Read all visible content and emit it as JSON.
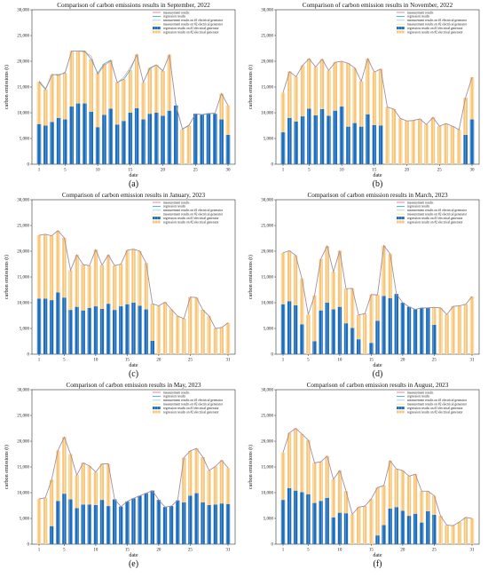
{
  "chart_data": [
    {
      "type": "bar",
      "caption": "(a)",
      "title": "Comparison of carbon emissions results in September, 2022",
      "xlabel": "date",
      "ylabel": "carbon emissions (t)",
      "ylim": [
        0,
        30000
      ],
      "yticks": [
        "0",
        "5,000",
        "10,000",
        "15,000",
        "20,000",
        "25,000",
        "30,000"
      ],
      "xtick_labels": [
        "1",
        "5",
        "10",
        "15",
        "20",
        "25",
        "30"
      ],
      "x": [
        1,
        2,
        3,
        4,
        5,
        6,
        7,
        8,
        9,
        10,
        11,
        12,
        13,
        14,
        15,
        16,
        17,
        18,
        19,
        20,
        21,
        22,
        23,
        24,
        25,
        26,
        27,
        28,
        29,
        30
      ],
      "legend": [
        "measurement results",
        "regression results",
        "measurement results on #1 electrical generator",
        "measurement results on #2 electrical generator",
        "regression results on #1 electrical generator",
        "regression results on #2 electrical generator"
      ],
      "legend_position": "top-right",
      "series": [
        {
          "name": "regression results on #1 electrical generator",
          "values": [
            7800,
            7500,
            8200,
            9000,
            8700,
            11200,
            11800,
            11800,
            10200,
            7200,
            9600,
            10800,
            7700,
            8400,
            10000,
            10900,
            8700,
            9800,
            10000,
            9400,
            10400,
            11400,
            0,
            0,
            9800,
            9600,
            9800,
            9800,
            8700,
            5700
          ]
        },
        {
          "name": "regression results on #2 electrical generator",
          "values": [
            8200,
            7000,
            9200,
            8400,
            9000,
            10800,
            10200,
            10200,
            10200,
            10500,
            9900,
            9400,
            8200,
            8100,
            8300,
            10400,
            7200,
            8900,
            9300,
            8700,
            10900,
            0,
            6800,
            7500,
            0,
            0,
            0,
            100,
            5000,
            5700
          ]
        },
        {
          "name": "measurement results",
          "values": [
            16200,
            14700,
            17500,
            17200,
            17900,
            22000,
            22000,
            21800,
            21000,
            17400,
            19200,
            20000,
            15800,
            16900,
            18800,
            21200,
            16000,
            18500,
            19300,
            18200,
            21200,
            11800,
            6900,
            7600,
            9800,
            9700,
            9900,
            9900,
            13800,
            11400
          ]
        }
      ]
    },
    {
      "type": "bar",
      "caption": "(b)",
      "title": "Comparison of carbon emission results in November, 2022",
      "xlabel": "date",
      "ylabel": "carbon emissions (t)",
      "ylim": [
        0,
        30000
      ],
      "yticks": [
        "0",
        "5,000",
        "10,000",
        "15,000",
        "20,000",
        "25,000",
        "30,000"
      ],
      "xtick_labels": [
        "1",
        "5",
        "10",
        "15",
        "20",
        "25",
        "30"
      ],
      "x": [
        1,
        2,
        3,
        4,
        5,
        6,
        7,
        8,
        9,
        10,
        11,
        12,
        13,
        14,
        15,
        16,
        17,
        18,
        19,
        20,
        21,
        22,
        23,
        24,
        25,
        26,
        27,
        28,
        29,
        30
      ],
      "legend": [
        "measurement results",
        "regression results",
        "measurement results on #1 electrical generator",
        "measurement results on #2 electrical generator",
        "regression results on #1 electrical generator",
        "regression results on #2 electrical generator"
      ],
      "legend_position": "top-right",
      "series": [
        {
          "name": "regression results on #1 electrical generator",
          "values": [
            6200,
            9000,
            8300,
            9300,
            10800,
            9500,
            10700,
            9400,
            10400,
            11200,
            7300,
            8000,
            7300,
            9700,
            7600,
            7500,
            0,
            0,
            0,
            0,
            0,
            0,
            0,
            0,
            0,
            0,
            0,
            0,
            5700,
            8700
          ]
        },
        {
          "name": "regression results on #2 electrical generator",
          "values": [
            7700,
            9000,
            8700,
            9900,
            9700,
            9400,
            9700,
            8800,
            9400,
            8800,
            12300,
            10700,
            8800,
            10800,
            10300,
            11000,
            11100,
            10700,
            8900,
            8400,
            8500,
            8800,
            7700,
            9100,
            7400,
            7900,
            7400,
            6700,
            7200,
            8200
          ]
        },
        {
          "name": "measurement results",
          "values": [
            13900,
            18000,
            17000,
            19200,
            20500,
            18900,
            20400,
            18200,
            19800,
            20000,
            19600,
            18700,
            16100,
            20500,
            17900,
            18500,
            11100,
            10700,
            8900,
            8400,
            8500,
            8800,
            7700,
            9100,
            7400,
            7900,
            7400,
            6700,
            12900,
            16900
          ]
        }
      ]
    },
    {
      "type": "bar",
      "caption": "(c)",
      "title": "Comparison of carbon emission results in January, 2023",
      "xlabel": "date",
      "ylabel": "carbon emissions (t)",
      "ylim": [
        0,
        30000
      ],
      "yticks": [
        "0",
        "5,000",
        "10,000",
        "15,000",
        "20,000",
        "25,000",
        "30,000"
      ],
      "xtick_labels": [
        "1",
        "5",
        "10",
        "15",
        "20",
        "25",
        "31"
      ],
      "x": [
        1,
        2,
        3,
        4,
        5,
        6,
        7,
        8,
        9,
        10,
        11,
        12,
        13,
        14,
        15,
        16,
        17,
        18,
        19,
        20,
        21,
        22,
        23,
        24,
        25,
        26,
        27,
        28,
        29,
        30,
        31
      ],
      "legend": [
        "measurement results",
        "regression results",
        "measurement results on #1 electrical generator",
        "measurement results on #2 electrical generator",
        "regression results on #1 electrical generator",
        "regression results on #2 electrical generator"
      ],
      "legend_position": "top-right",
      "series": [
        {
          "name": "regression results on #1 electrical generator",
          "values": [
            10800,
            10800,
            10500,
            12000,
            11000,
            8600,
            9200,
            8500,
            9000,
            9300,
            8800,
            9800,
            8600,
            9300,
            9700,
            10000,
            9400,
            8700,
            2600,
            0,
            0,
            0,
            0,
            0,
            0,
            0,
            0,
            0,
            0,
            0,
            0
          ]
        },
        {
          "name": "regression results on #2 electrical generator",
          "values": [
            12300,
            12500,
            12500,
            12000,
            11600,
            7700,
            10100,
            8900,
            8200,
            11000,
            8500,
            9500,
            8600,
            8200,
            10500,
            10400,
            10600,
            9000,
            7200,
            9400,
            10100,
            8700,
            7400,
            6900,
            11100,
            11000,
            8600,
            7400,
            5000,
            5200,
            6100
          ]
        },
        {
          "name": "measurement results",
          "values": [
            23100,
            23300,
            23000,
            24000,
            22600,
            16300,
            19300,
            17400,
            17200,
            20300,
            17300,
            19300,
            17200,
            17500,
            20200,
            20400,
            20000,
            17700,
            9800,
            9400,
            10100,
            8700,
            7400,
            6900,
            11100,
            11000,
            8600,
            7400,
            5000,
            5200,
            6100
          ]
        }
      ]
    },
    {
      "type": "bar",
      "caption": "(d)",
      "title": "Comparison of carbon emission results in March, 2023",
      "xlabel": "date",
      "ylabel": "carbon emissions (t)",
      "ylim": [
        0,
        30000
      ],
      "yticks": [
        "0",
        "5,000",
        "10,000",
        "15,000",
        "20,000",
        "25,000",
        "30,000"
      ],
      "xtick_labels": [
        "1",
        "5",
        "10",
        "15",
        "20",
        "25",
        "31"
      ],
      "x": [
        1,
        2,
        3,
        4,
        5,
        6,
        7,
        8,
        9,
        10,
        11,
        12,
        13,
        14,
        15,
        16,
        17,
        18,
        19,
        20,
        21,
        22,
        23,
        24,
        25,
        26,
        27,
        28,
        29,
        30,
        31
      ],
      "legend": [
        "measurement results",
        "regression results",
        "measurement results on #1 electrical generator",
        "measurement results on #2 electrical generator",
        "regression results on #1 electrical generator",
        "regression results on #2 electrical generator"
      ],
      "legend_position": "top-right",
      "series": [
        {
          "name": "regression results on #1 electrical generator",
          "values": [
            9700,
            10300,
            9500,
            5800,
            0,
            2500,
            8500,
            10000,
            8700,
            9200,
            6000,
            5100,
            2900,
            0,
            2200,
            6500,
            11300,
            10900,
            11700,
            10000,
            9200,
            8700,
            9000,
            9000,
            5700,
            0,
            0,
            0,
            0,
            0,
            0
          ]
        },
        {
          "name": "regression results on #2 electrical generator",
          "values": [
            10000,
            9800,
            9700,
            8900,
            7700,
            8900,
            10000,
            11000,
            7300,
            10900,
            6700,
            7700,
            4700,
            7900,
            9400,
            5000,
            9800,
            8600,
            0,
            0,
            0,
            0,
            0,
            0,
            3400,
            9000,
            7700,
            9300,
            9400,
            9700,
            11200
          ]
        },
        {
          "name": "measurement results",
          "values": [
            19700,
            20100,
            19200,
            14700,
            7700,
            11400,
            18500,
            21000,
            16000,
            20100,
            12700,
            12800,
            7600,
            7900,
            11600,
            11500,
            21100,
            19500,
            11700,
            10000,
            9200,
            8700,
            9000,
            9000,
            9100,
            9000,
            7700,
            9300,
            9400,
            9700,
            11200
          ]
        }
      ]
    },
    {
      "type": "bar",
      "caption": "(e)",
      "title": "Comparison of carbon emission results in May, 2023",
      "xlabel": "date",
      "ylabel": "carbon emissions (t)",
      "ylim": [
        0,
        30000
      ],
      "yticks": [
        "0",
        "5,000",
        "10,000",
        "15,000",
        "20,000",
        "25,000",
        "30,000"
      ],
      "xtick_labels": [
        "1",
        "5",
        "10",
        "15",
        "20",
        "25",
        "31"
      ],
      "x": [
        1,
        2,
        3,
        4,
        5,
        6,
        7,
        8,
        9,
        10,
        11,
        12,
        13,
        14,
        15,
        16,
        17,
        18,
        19,
        20,
        21,
        22,
        23,
        24,
        25,
        26,
        27,
        28,
        29,
        30,
        31
      ],
      "legend": [
        "measurement results",
        "regression results",
        "measurement results on #1 electrical generator",
        "measurement results on #2 electrical generator",
        "regression results on #1 electrical generator",
        "regression results on #2 electrical generator"
      ],
      "legend_position": "top-right",
      "series": [
        {
          "name": "regression results on #1 electrical generator",
          "values": [
            0,
            0,
            3500,
            8400,
            9800,
            8700,
            7000,
            7700,
            7700,
            7600,
            8600,
            7400,
            8700,
            7300,
            8300,
            8900,
            9400,
            9900,
            10400,
            8600,
            7200,
            7400,
            8500,
            8100,
            9400,
            9900,
            8100,
            7600,
            7700,
            7900,
            7800
          ]
        },
        {
          "name": "regression results on #2 electrical generator",
          "values": [
            8800,
            9000,
            9000,
            9800,
            11000,
            8800,
            6400,
            8100,
            7500,
            6400,
            7000,
            8200,
            0,
            0,
            0,
            0,
            0,
            0,
            0,
            0,
            0,
            0,
            0,
            8700,
            8700,
            8700,
            8800,
            6700,
            7400,
            8400,
            7000
          ]
        },
        {
          "name": "measurement results",
          "values": [
            8800,
            9000,
            12500,
            18200,
            20800,
            17500,
            13400,
            15800,
            15200,
            14000,
            15600,
            15600,
            8700,
            7300,
            8300,
            8900,
            9400,
            9900,
            10400,
            8600,
            7200,
            7400,
            8500,
            16800,
            18100,
            18600,
            16900,
            14300,
            15100,
            16300,
            14800
          ]
        }
      ]
    },
    {
      "type": "bar",
      "caption": "(f)",
      "title": "Comparison of carbon emission results in August, 2023",
      "xlabel": "date",
      "ylabel": "carbon emissions (t)",
      "ylim": [
        0,
        30000
      ],
      "yticks": [
        "0",
        "5,000",
        "10,000",
        "15,000",
        "20,000",
        "25,000",
        "30,000"
      ],
      "xtick_labels": [
        "1",
        "5",
        "10",
        "15",
        "20",
        "25",
        "31"
      ],
      "x": [
        1,
        2,
        3,
        4,
        5,
        6,
        7,
        8,
        9,
        10,
        11,
        12,
        13,
        14,
        15,
        16,
        17,
        18,
        19,
        20,
        21,
        22,
        23,
        24,
        25,
        26,
        27,
        28,
        29,
        30,
        31
      ],
      "legend": [
        "measurement results",
        "regression results",
        "measurement results on #1 electrical generator",
        "measurement results on #2 electrical generator",
        "regression results on #1 electrical generator",
        "regression results on #2 electrical generator"
      ],
      "legend_position": "top-right",
      "series": [
        {
          "name": "regression results on #1 electrical generator",
          "values": [
            8600,
            10900,
            10400,
            10100,
            9700,
            8000,
            8400,
            9000,
            5200,
            6100,
            6000,
            0,
            0,
            0,
            0,
            1700,
            3700,
            6900,
            7200,
            6500,
            5500,
            5900,
            4200,
            6400,
            5700,
            0,
            0,
            0,
            0,
            0,
            0
          ]
        },
        {
          "name": "regression results on #2 electrical generator",
          "values": [
            9200,
            10700,
            12100,
            11300,
            10500,
            7800,
            7600,
            8100,
            7400,
            8200,
            4300,
            5800,
            7200,
            7400,
            8800,
            9300,
            7700,
            9300,
            7400,
            7800,
            7700,
            7700,
            6100,
            3900,
            3700,
            5500,
            3700,
            3600,
            4300,
            5200,
            5000
          ]
        },
        {
          "name": "measurement results",
          "values": [
            17800,
            21600,
            22500,
            21400,
            20200,
            15800,
            16000,
            17100,
            12600,
            14300,
            10300,
            5800,
            7200,
            7400,
            8800,
            11000,
            11400,
            16200,
            14600,
            14300,
            13200,
            13600,
            10300,
            10300,
            9400,
            5500,
            3700,
            3600,
            4300,
            5200,
            5000
          ]
        }
      ]
    }
  ]
}
